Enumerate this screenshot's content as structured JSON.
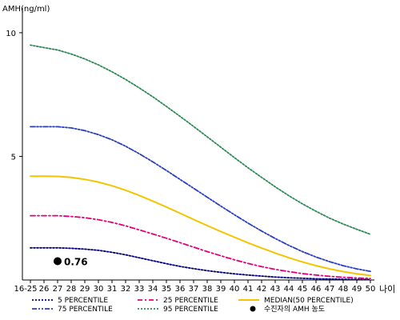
{
  "chart_data": {
    "type": "line",
    "title": "",
    "ylabel": "AMH(ng/ml)",
    "xlabel": "나이",
    "ylim": [
      0,
      11
    ],
    "y_ticks": [
      5,
      10
    ],
    "categories": [
      "16-25",
      "26",
      "27",
      "28",
      "29",
      "30",
      "31",
      "32",
      "33",
      "34",
      "35",
      "36",
      "37",
      "38",
      "39",
      "40",
      "41",
      "42",
      "43",
      "44",
      "45",
      "46",
      "47",
      "48",
      "49",
      "50"
    ],
    "grid": false,
    "legend_position": "bottom",
    "series": [
      {
        "name": "5 PERCENTILE",
        "color": "#000080",
        "dash": "dotted",
        "values": [
          1.3,
          1.3,
          1.3,
          1.28,
          1.25,
          1.2,
          1.12,
          1.02,
          0.9,
          0.78,
          0.66,
          0.55,
          0.46,
          0.38,
          0.31,
          0.25,
          0.2,
          0.16,
          0.12,
          0.09,
          0.07,
          0.05,
          0.04,
          0.03,
          0.02,
          0.02
        ]
      },
      {
        "name": "25 PERCENTILE",
        "color": "#e0007a",
        "dash": "dashdot",
        "values": [
          2.6,
          2.6,
          2.6,
          2.57,
          2.52,
          2.44,
          2.33,
          2.19,
          2.03,
          1.86,
          1.69,
          1.51,
          1.33,
          1.15,
          0.98,
          0.82,
          0.67,
          0.54,
          0.43,
          0.34,
          0.26,
          0.2,
          0.15,
          0.11,
          0.08,
          0.06
        ]
      },
      {
        "name": "MEDIAN(50 PERCENTILE)",
        "color": "#f5c400",
        "dash": "solid",
        "values": [
          4.2,
          4.2,
          4.19,
          4.15,
          4.07,
          3.96,
          3.81,
          3.63,
          3.42,
          3.19,
          2.95,
          2.7,
          2.45,
          2.2,
          1.96,
          1.73,
          1.5,
          1.29,
          1.09,
          0.9,
          0.73,
          0.58,
          0.45,
          0.34,
          0.25,
          0.18
        ]
      },
      {
        "name": "75 PERCENTILE",
        "color": "#2a3fbf",
        "dash": "dashdotdot",
        "values": [
          6.2,
          6.2,
          6.2,
          6.15,
          6.04,
          5.88,
          5.67,
          5.41,
          5.11,
          4.78,
          4.43,
          4.07,
          3.71,
          3.35,
          2.99,
          2.64,
          2.3,
          1.98,
          1.68,
          1.4,
          1.15,
          0.93,
          0.74,
          0.58,
          0.45,
          0.35
        ]
      },
      {
        "name": "95 PERCENTILE",
        "color": "#2e8b57",
        "dash": "dotted",
        "values": [
          9.5,
          9.4,
          9.3,
          9.14,
          8.94,
          8.7,
          8.42,
          8.11,
          7.77,
          7.41,
          7.02,
          6.62,
          6.21,
          5.79,
          5.37,
          4.95,
          4.54,
          4.15,
          3.77,
          3.41,
          3.08,
          2.78,
          2.5,
          2.26,
          2.05,
          1.85
        ]
      }
    ],
    "point": {
      "label": "0.76",
      "x_category": "27",
      "y": 0.76,
      "color": "#000000",
      "legend_label": "수진자의 AMH 농도"
    }
  }
}
